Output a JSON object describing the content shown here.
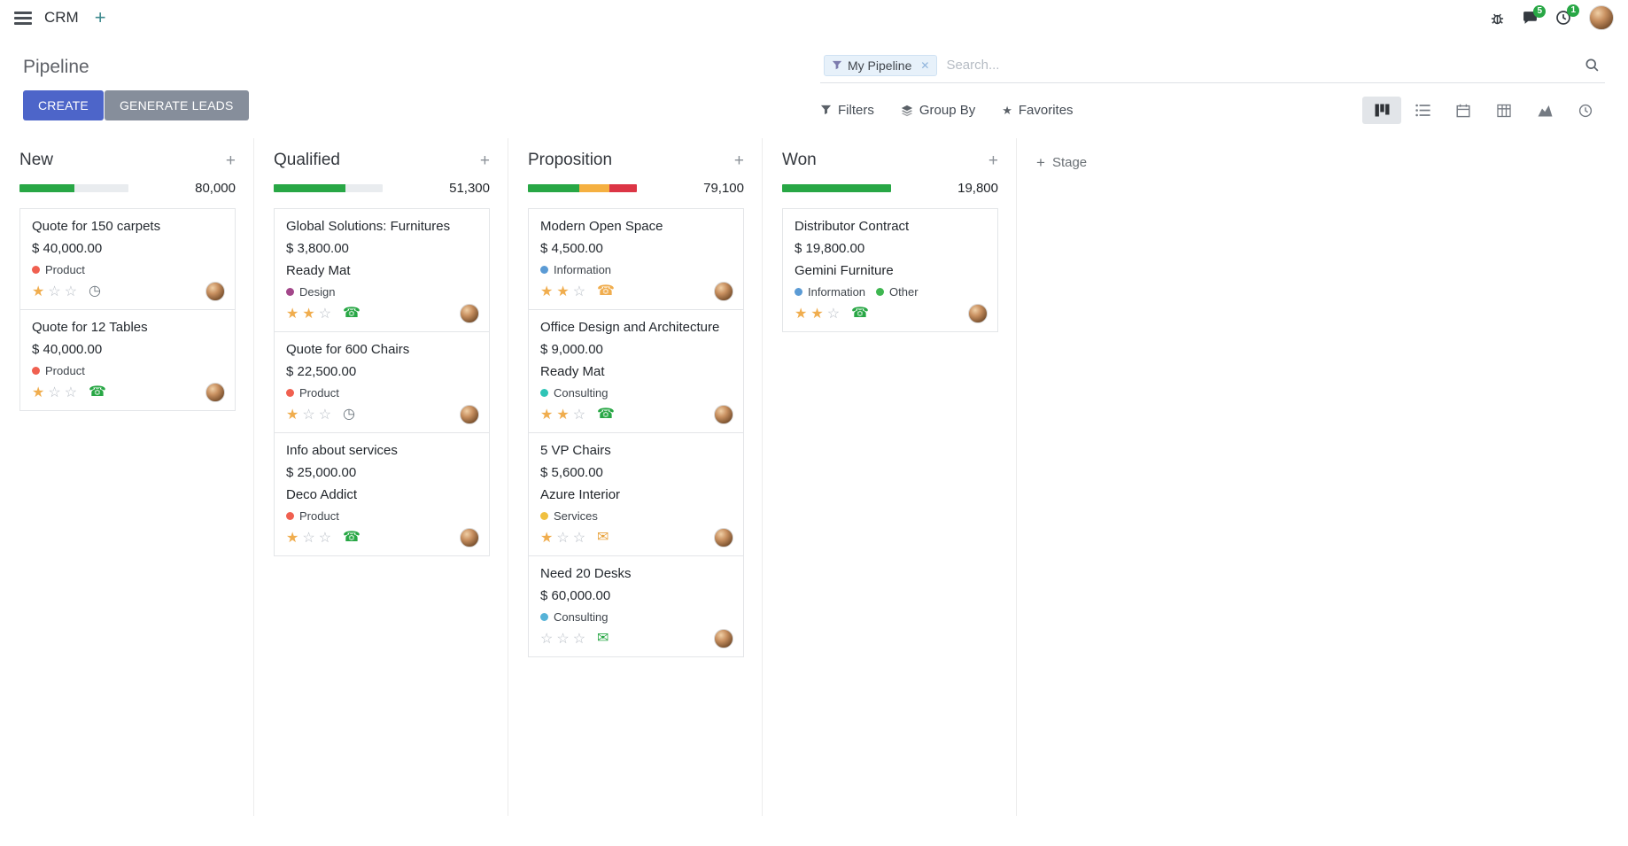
{
  "navbar": {
    "app_name": "CRM",
    "messages_badge": "5",
    "activities_badge": "1"
  },
  "control_panel": {
    "title": "Pipeline",
    "create_label": "CREATE",
    "generate_leads_label": "GENERATE LEADS",
    "filters_label": "Filters",
    "group_by_label": "Group By",
    "favorites_label": "Favorites",
    "search": {
      "facet_label": "My Pipeline",
      "placeholder": "Search..."
    }
  },
  "board": {
    "add_stage_label": "Stage",
    "columns": [
      {
        "name": "New",
        "total": "80,000",
        "progress": [
          {
            "color": "#28a745",
            "pct": 50
          }
        ],
        "cards": [
          {
            "title": "Quote for 150 carpets",
            "amount": "$ 40,000.00",
            "tags": [
              {
                "label": "Product",
                "color": "#f06050"
              }
            ],
            "stars": 1,
            "activity": {
              "type": "clock",
              "color": "#6c757d"
            }
          },
          {
            "title": "Quote for 12 Tables",
            "amount": "$ 40,000.00",
            "tags": [
              {
                "label": "Product",
                "color": "#f06050"
              }
            ],
            "stars": 1,
            "activity": {
              "type": "phone",
              "color": "#28a745"
            }
          }
        ]
      },
      {
        "name": "Qualified",
        "total": "51,300",
        "progress": [
          {
            "color": "#28a745",
            "pct": 66
          }
        ],
        "cards": [
          {
            "title": "Global Solutions: Furnitures",
            "amount": "$ 3,800.00",
            "partner": "Ready Mat",
            "tags": [
              {
                "label": "Design",
                "color": "#a3478a"
              }
            ],
            "stars": 2,
            "activity": {
              "type": "phone",
              "color": "#28a745"
            }
          },
          {
            "title": "Quote for 600 Chairs",
            "amount": "$ 22,500.00",
            "tags": [
              {
                "label": "Product",
                "color": "#f06050"
              }
            ],
            "stars": 1,
            "activity": {
              "type": "clock",
              "color": "#6c757d"
            }
          },
          {
            "title": "Info about services",
            "amount": "$ 25,000.00",
            "partner": "Deco Addict",
            "tags": [
              {
                "label": "Product",
                "color": "#f06050"
              }
            ],
            "stars": 1,
            "activity": {
              "type": "phone",
              "color": "#28a745"
            }
          }
        ]
      },
      {
        "name": "Proposition",
        "total": "79,100",
        "progress": [
          {
            "color": "#28a745",
            "pct": 47
          },
          {
            "color": "#f5b041",
            "pct": 28
          },
          {
            "color": "#dc3545",
            "pct": 25
          }
        ],
        "cards": [
          {
            "title": "Modern Open Space",
            "amount": "$ 4,500.00",
            "tags": [
              {
                "label": "Information",
                "color": "#5b9bd5"
              }
            ],
            "stars": 2,
            "activity": {
              "type": "phone",
              "color": "#f0ad4e"
            }
          },
          {
            "title": "Office Design and Architecture",
            "amount": "$ 9,000.00",
            "partner": "Ready Mat",
            "tags": [
              {
                "label": "Consulting",
                "color": "#2ec4b6"
              }
            ],
            "stars": 2,
            "activity": {
              "type": "phone",
              "color": "#28a745"
            }
          },
          {
            "title": "5 VP Chairs",
            "amount": "$ 5,600.00",
            "partner": "Azure Interior",
            "tags": [
              {
                "label": "Services",
                "color": "#f0c040"
              }
            ],
            "stars": 1,
            "activity": {
              "type": "envelope",
              "color": "#e8a33d"
            }
          },
          {
            "title": "Need 20 Desks",
            "amount": "$ 60,000.00",
            "tags": [
              {
                "label": "Consulting",
                "color": "#56b3d8"
              }
            ],
            "stars": 0,
            "activity": {
              "type": "envelope",
              "color": "#28a745"
            }
          }
        ]
      },
      {
        "name": "Won",
        "total": "19,800",
        "progress": [
          {
            "color": "#28a745",
            "pct": 100
          }
        ],
        "cards": [
          {
            "title": "Distributor Contract",
            "amount": "$ 19,800.00",
            "partner": "Gemini Furniture",
            "tags": [
              {
                "label": "Information",
                "color": "#5b9bd5"
              },
              {
                "label": "Other",
                "color": "#3eb650"
              }
            ],
            "stars": 2,
            "activity": {
              "type": "phone",
              "color": "#28a745"
            }
          }
        ]
      }
    ]
  },
  "colors": {
    "primary_button": "#4d65c9",
    "secondary_button": "#868e9b",
    "progress_green": "#28a745",
    "progress_yellow": "#f5b041",
    "progress_red": "#dc3545",
    "star_gold": "#f0ad4e",
    "badge_green": "#28a745"
  }
}
